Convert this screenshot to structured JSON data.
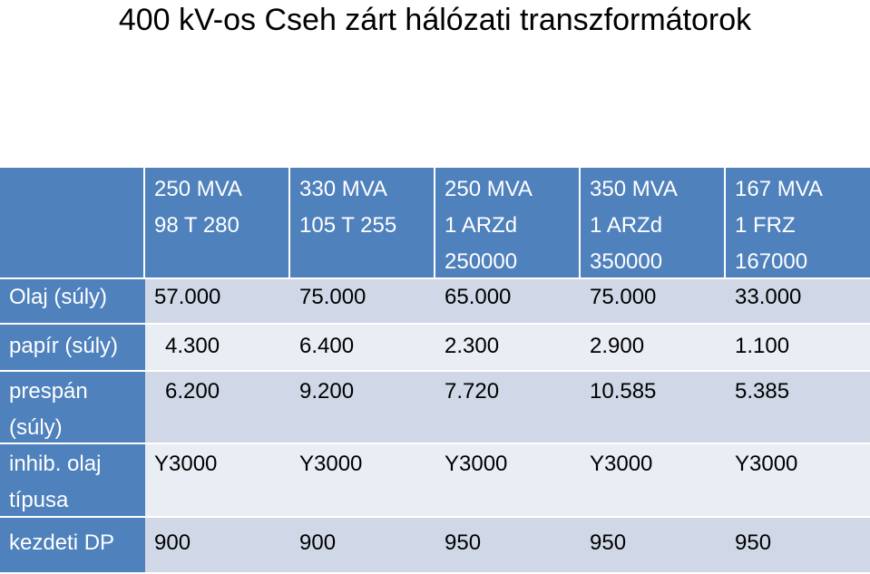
{
  "title": "400 kV-os Cseh zárt hálózati transzformátorok",
  "table": {
    "header": [
      {
        "lines": [
          "250 MVA",
          "98 T 280",
          ""
        ]
      },
      {
        "lines": [
          "330 MVA",
          "105 T 255",
          ""
        ]
      },
      {
        "lines": [
          "250 MVA",
          "1 ARZd",
          "250000"
        ]
      },
      {
        "lines": [
          "350 MVA",
          "1 ARZd",
          "350000"
        ]
      },
      {
        "lines": [
          "167 MVA",
          "1 FRZ",
          "167000"
        ]
      }
    ],
    "rows": [
      {
        "label": "Olaj (súly)",
        "values": [
          "57.000",
          "75.000",
          "65.000",
          "75.000",
          "33.000"
        ]
      },
      {
        "label": "papír (súly)",
        "values": [
          "4.300",
          "6.400",
          "2.300",
          "2.900",
          "1.100"
        ]
      },
      {
        "label_lines": [
          "prespán",
          "(súly)"
        ],
        "values": [
          "6.200",
          "9.200",
          "7.720",
          "10.585",
          "5.385"
        ]
      },
      {
        "label_lines": [
          "inhib. olaj",
          "típusa"
        ],
        "values": [
          "Y3000",
          "Y3000",
          "Y3000",
          "Y3000",
          "Y3000"
        ]
      },
      {
        "label": "kezdeti DP",
        "values": [
          "900",
          "900",
          "950",
          "950",
          "950"
        ]
      }
    ]
  }
}
